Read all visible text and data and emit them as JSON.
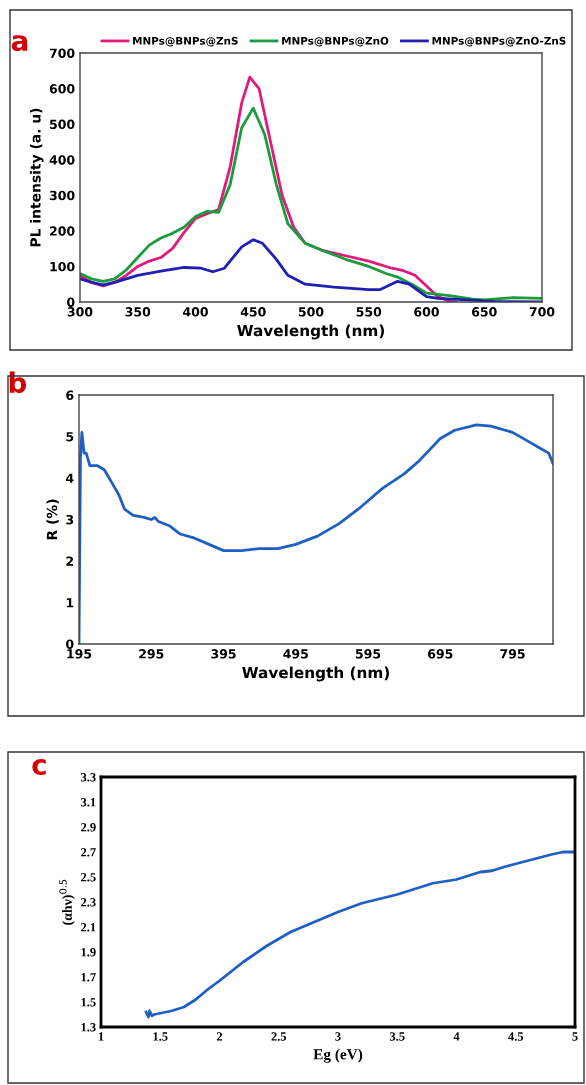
{
  "chart_data": [
    {
      "type": "line",
      "title": "a",
      "xlabel": "Wavelength (nm)",
      "ylabel": "PL intensity (a. u)",
      "xlim": [
        300,
        700
      ],
      "xticks": [
        300,
        350,
        400,
        450,
        500,
        550,
        600,
        650,
        700
      ],
      "ylim": [
        0,
        700
      ],
      "yticks": [
        0,
        100,
        200,
        300,
        400,
        500,
        600,
        700
      ],
      "grid": false,
      "legend": "top",
      "marker": "none",
      "line_style": "solid",
      "series": [
        {
          "name": "MNPs@BNPs@ZnS",
          "color": "#e0197d",
          "x": [
            300,
            310,
            320,
            330,
            340,
            350,
            360,
            370,
            380,
            390,
            400,
            410,
            420,
            430,
            440,
            447,
            455,
            465,
            475,
            485,
            495,
            510,
            530,
            550,
            570,
            580,
            590,
            600,
            610,
            620,
            625
          ],
          "values": [
            75,
            55,
            45,
            55,
            75,
            100,
            115,
            125,
            150,
            195,
            235,
            248,
            260,
            380,
            560,
            632,
            600,
            450,
            300,
            210,
            165,
            145,
            130,
            115,
            95,
            88,
            75,
            45,
            15,
            2,
            0
          ]
        },
        {
          "name": "MNPs@BNPs@ZnO",
          "color": "#1a9c3e",
          "x": [
            300,
            310,
            320,
            330,
            340,
            350,
            360,
            370,
            380,
            390,
            400,
            410,
            420,
            430,
            440,
            450,
            460,
            470,
            480,
            495,
            510,
            530,
            550,
            565,
            575,
            590,
            600,
            620,
            640,
            650,
            675,
            700
          ],
          "values": [
            80,
            65,
            58,
            65,
            90,
            125,
            160,
            180,
            193,
            210,
            240,
            255,
            252,
            330,
            490,
            545,
            470,
            330,
            220,
            165,
            145,
            120,
            100,
            80,
            70,
            45,
            25,
            18,
            8,
            6,
            12,
            10
          ]
        },
        {
          "name": "MNPs@BNPs@ZnO-ZnS",
          "color": "#1f1fb4",
          "x": [
            300,
            310,
            320,
            330,
            350,
            370,
            390,
            405,
            415,
            425,
            440,
            450,
            458,
            470,
            480,
            495,
            520,
            550,
            560,
            575,
            585,
            600,
            610,
            640,
            660,
            700
          ],
          "values": [
            65,
            55,
            48,
            55,
            75,
            87,
            97,
            95,
            85,
            95,
            155,
            175,
            165,
            120,
            75,
            50,
            42,
            35,
            35,
            58,
            50,
            15,
            10,
            5,
            1,
            0
          ]
        }
      ]
    },
    {
      "type": "line",
      "title": "b",
      "xlabel": "Wavelength (nm)",
      "ylabel": "R (%)",
      "xlim": [
        195,
        851
      ],
      "xticks": [
        195,
        295,
        395,
        495,
        595,
        695,
        795
      ],
      "ylim": [
        0,
        6
      ],
      "yticks": [
        0,
        1,
        2,
        3,
        4,
        5,
        6
      ],
      "grid": false,
      "marker": "none",
      "line_style": "solid",
      "series": [
        {
          "color": "#1f5fc4",
          "x": [
            195,
            197,
            199,
            202,
            205,
            210,
            220,
            230,
            240,
            250,
            258,
            270,
            285,
            295,
            300,
            305,
            320,
            335,
            355,
            375,
            395,
            420,
            445,
            470,
            495,
            525,
            555,
            585,
            615,
            645,
            665,
            695,
            715,
            745,
            765,
            795,
            815,
            835,
            845,
            851
          ],
          "values": [
            0,
            4.5,
            5.1,
            4.6,
            4.6,
            4.3,
            4.3,
            4.2,
            3.9,
            3.6,
            3.25,
            3.1,
            3.05,
            3.0,
            3.05,
            2.95,
            2.85,
            2.65,
            2.55,
            2.4,
            2.25,
            2.25,
            2.3,
            2.3,
            2.4,
            2.6,
            2.9,
            3.3,
            3.75,
            4.1,
            4.4,
            4.95,
            5.15,
            5.28,
            5.25,
            5.1,
            4.9,
            4.7,
            4.6,
            4.35
          ]
        }
      ]
    },
    {
      "type": "line",
      "title": "c",
      "xlabel": "Eg (eV)",
      "ylabel": "(αhν)$^{0.5}$",
      "xlim": [
        1,
        5
      ],
      "xticks": [
        1,
        1.5,
        2,
        2.5,
        3,
        3.5,
        4,
        4.5,
        5
      ],
      "ylim": [
        1.3,
        3.3
      ],
      "yticks": [
        1.3,
        1.5,
        1.7,
        1.9,
        2.1,
        2.3,
        2.5,
        2.7,
        2.9,
        3.1,
        3.3
      ],
      "grid": false,
      "marker": "none",
      "line_style": "solid",
      "series": [
        {
          "color": "#1f5fc4",
          "x": [
            1.38,
            1.4,
            1.41,
            1.43,
            1.45,
            1.6,
            1.7,
            1.8,
            1.9,
            2.0,
            2.2,
            2.4,
            2.6,
            2.8,
            3.0,
            3.2,
            3.5,
            3.8,
            4.0,
            4.2,
            4.3,
            4.4,
            4.6,
            4.8,
            4.9,
            5.0
          ],
          "values": [
            1.42,
            1.38,
            1.43,
            1.39,
            1.4,
            1.43,
            1.46,
            1.52,
            1.6,
            1.67,
            1.82,
            1.95,
            2.06,
            2.14,
            2.22,
            2.29,
            2.36,
            2.45,
            2.48,
            2.54,
            2.55,
            2.58,
            2.63,
            2.68,
            2.7,
            2.7
          ]
        }
      ]
    }
  ]
}
